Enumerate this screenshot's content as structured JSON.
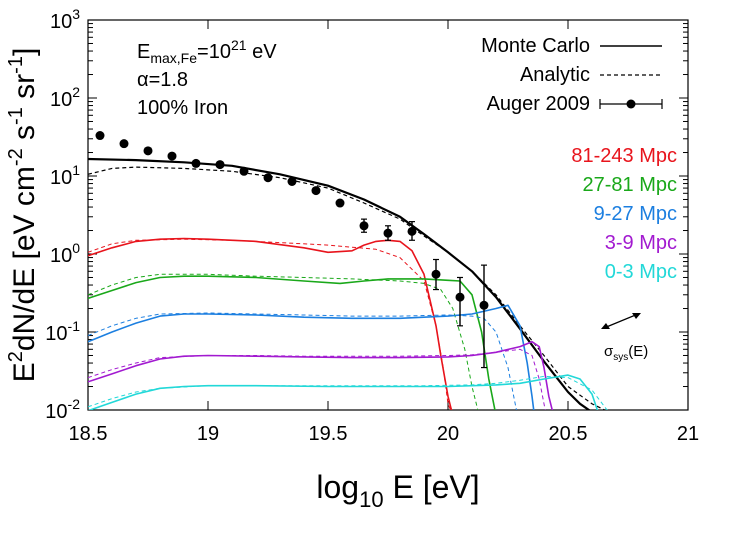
{
  "chart_data": {
    "type": "line",
    "xlabel": "log10 E [eV]",
    "ylabel": "E2dN/dE [eV cm-2 s-1 sr-1]",
    "xlim": [
      18.5,
      21
    ],
    "ylim": [
      0.01,
      1000
    ],
    "yscale": "log",
    "x_ticks": [
      "18.5",
      "19",
      "19.5",
      "20",
      "20.5",
      "21"
    ],
    "y_ticks": [
      {
        "base": "10",
        "exp": "-2",
        "value": 0.01
      },
      {
        "base": "10",
        "exp": "-1",
        "value": 0.1
      },
      {
        "base": "10",
        "exp": "0",
        "value": 1
      },
      {
        "base": "10",
        "exp": "1",
        "value": 10
      },
      {
        "base": "10",
        "exp": "2",
        "value": 100
      },
      {
        "base": "10",
        "exp": "3",
        "value": 1000
      }
    ],
    "annotations": {
      "emax": "Emax,Fe=10^21 eV",
      "alpha": "α=1.8",
      "composition": "100% Iron",
      "sigma": "σsys(E)"
    },
    "legend_placement": "top-right",
    "legend": [
      {
        "label": "Monte Carlo",
        "style": "solid"
      },
      {
        "label": "Analytic",
        "style": "dashed"
      },
      {
        "label": "Auger 2009",
        "style": "points-errorbars"
      }
    ],
    "distance_labels": [
      {
        "label": "81-243 Mpc",
        "color": "#e8141c"
      },
      {
        "label": "27-81 Mpc",
        "color": "#1aa81a"
      },
      {
        "label": "9-27 Mpc",
        "color": "#1c7fe0"
      },
      {
        "label": "3-9 Mpc",
        "color": "#a21ad0"
      },
      {
        "label": "0-3 Mpc",
        "color": "#22d8d8"
      }
    ],
    "series": [
      {
        "name": "Monte Carlo",
        "color": "#000000",
        "dash": false,
        "width": 2.2,
        "points": [
          [
            18.5,
            16.5
          ],
          [
            18.7,
            16
          ],
          [
            18.9,
            15
          ],
          [
            19.1,
            13.5
          ],
          [
            19.3,
            10.5
          ],
          [
            19.5,
            7.5
          ],
          [
            19.65,
            5
          ],
          [
            19.8,
            3
          ],
          [
            19.9,
            1.8
          ],
          [
            20.0,
            1.05
          ],
          [
            20.1,
            0.6
          ],
          [
            20.2,
            0.28
          ],
          [
            20.3,
            0.11
          ],
          [
            20.4,
            0.042
          ],
          [
            20.5,
            0.017
          ],
          [
            20.55,
            0.012
          ],
          [
            20.62,
            0.0085
          ]
        ]
      },
      {
        "name": "Analytic",
        "color": "#000000",
        "dash": true,
        "width": 1.2,
        "points": [
          [
            18.5,
            10.5
          ],
          [
            18.6,
            12.5
          ],
          [
            18.7,
            13
          ],
          [
            18.9,
            12.5
          ],
          [
            19.1,
            11.5
          ],
          [
            19.3,
            9.5
          ],
          [
            19.5,
            7
          ],
          [
            19.65,
            4.5
          ],
          [
            19.8,
            2.8
          ],
          [
            19.9,
            1.7
          ],
          [
            20.0,
            1.05
          ],
          [
            20.1,
            0.6
          ],
          [
            20.2,
            0.3
          ],
          [
            20.3,
            0.12
          ],
          [
            20.4,
            0.05
          ],
          [
            20.5,
            0.02
          ],
          [
            20.6,
            0.012
          ],
          [
            20.7,
            0.0085
          ]
        ]
      },
      {
        "name": "81-243 Mpc",
        "color": "#e8141c",
        "dash": false,
        "width": 1.6,
        "points": [
          [
            18.5,
            0.95
          ],
          [
            18.6,
            1.2
          ],
          [
            18.7,
            1.45
          ],
          [
            18.8,
            1.55
          ],
          [
            18.9,
            1.58
          ],
          [
            19.0,
            1.55
          ],
          [
            19.2,
            1.45
          ],
          [
            19.4,
            1.2
          ],
          [
            19.5,
            1.05
          ],
          [
            19.6,
            1.1
          ],
          [
            19.65,
            1.3
          ],
          [
            19.7,
            1.45
          ],
          [
            19.75,
            1.5
          ],
          [
            19.8,
            1.45
          ],
          [
            19.85,
            1.1
          ],
          [
            19.9,
            0.55
          ],
          [
            19.95,
            0.12
          ],
          [
            19.97,
            0.05
          ],
          [
            20.0,
            0.015
          ],
          [
            20.02,
            0.0085
          ]
        ]
      },
      {
        "name": "81-243 Mpc",
        "color": "#e8141c",
        "dash": true,
        "width": 1.0,
        "points": [
          [
            18.5,
            1.05
          ],
          [
            18.6,
            1.35
          ],
          [
            18.7,
            1.5
          ],
          [
            18.9,
            1.55
          ],
          [
            19.1,
            1.5
          ],
          [
            19.3,
            1.4
          ],
          [
            19.5,
            1.3
          ],
          [
            19.7,
            1.15
          ],
          [
            19.8,
            0.9
          ],
          [
            19.9,
            0.45
          ],
          [
            19.95,
            0.12
          ],
          [
            19.98,
            0.035
          ],
          [
            20.0,
            0.012
          ],
          [
            20.02,
            0.0085
          ]
        ]
      },
      {
        "name": "27-81 Mpc",
        "color": "#1aa81a",
        "dash": false,
        "width": 1.6,
        "points": [
          [
            18.5,
            0.27
          ],
          [
            18.6,
            0.34
          ],
          [
            18.7,
            0.43
          ],
          [
            18.8,
            0.5
          ],
          [
            18.9,
            0.52
          ],
          [
            19.0,
            0.52
          ],
          [
            19.2,
            0.5
          ],
          [
            19.4,
            0.45
          ],
          [
            19.55,
            0.42
          ],
          [
            19.65,
            0.45
          ],
          [
            19.75,
            0.48
          ],
          [
            19.9,
            0.48
          ],
          [
            20.0,
            0.46
          ],
          [
            20.05,
            0.45
          ],
          [
            20.1,
            0.3
          ],
          [
            20.14,
            0.1
          ],
          [
            20.17,
            0.025
          ],
          [
            20.2,
            0.0085
          ]
        ]
      },
      {
        "name": "27-81 Mpc",
        "color": "#1aa81a",
        "dash": true,
        "width": 1.0,
        "points": [
          [
            18.5,
            0.3
          ],
          [
            18.6,
            0.4
          ],
          [
            18.7,
            0.5
          ],
          [
            18.8,
            0.55
          ],
          [
            19.0,
            0.55
          ],
          [
            19.2,
            0.52
          ],
          [
            19.4,
            0.5
          ],
          [
            19.6,
            0.48
          ],
          [
            19.8,
            0.45
          ],
          [
            19.9,
            0.42
          ],
          [
            19.97,
            0.35
          ],
          [
            20.02,
            0.2
          ],
          [
            20.07,
            0.06
          ],
          [
            20.1,
            0.02
          ],
          [
            20.13,
            0.0085
          ]
        ]
      },
      {
        "name": "9-27 Mpc",
        "color": "#1c7fe0",
        "dash": false,
        "width": 1.6,
        "points": [
          [
            18.5,
            0.075
          ],
          [
            18.6,
            0.1
          ],
          [
            18.7,
            0.13
          ],
          [
            18.8,
            0.16
          ],
          [
            18.9,
            0.17
          ],
          [
            19.0,
            0.17
          ],
          [
            19.2,
            0.165
          ],
          [
            19.4,
            0.155
          ],
          [
            19.6,
            0.15
          ],
          [
            19.8,
            0.15
          ],
          [
            20.0,
            0.16
          ],
          [
            20.1,
            0.17
          ],
          [
            20.2,
            0.2
          ],
          [
            20.25,
            0.22
          ],
          [
            20.3,
            0.12
          ],
          [
            20.33,
            0.04
          ],
          [
            20.35,
            0.015
          ],
          [
            20.36,
            0.0085
          ]
        ]
      },
      {
        "name": "9-27 Mpc",
        "color": "#1c7fe0",
        "dash": true,
        "width": 1.0,
        "points": [
          [
            18.5,
            0.09
          ],
          [
            18.6,
            0.12
          ],
          [
            18.7,
            0.15
          ],
          [
            18.8,
            0.17
          ],
          [
            19.0,
            0.175
          ],
          [
            19.2,
            0.17
          ],
          [
            19.4,
            0.165
          ],
          [
            19.6,
            0.16
          ],
          [
            19.8,
            0.16
          ],
          [
            20.0,
            0.165
          ],
          [
            20.1,
            0.16
          ],
          [
            20.15,
            0.15
          ],
          [
            20.2,
            0.1
          ],
          [
            20.25,
            0.035
          ],
          [
            20.28,
            0.012
          ],
          [
            20.29,
            0.0085
          ]
        ]
      },
      {
        "name": "3-9 Mpc",
        "color": "#a21ad0",
        "dash": false,
        "width": 1.6,
        "points": [
          [
            18.5,
            0.023
          ],
          [
            18.6,
            0.029
          ],
          [
            18.7,
            0.037
          ],
          [
            18.8,
            0.045
          ],
          [
            18.9,
            0.049
          ],
          [
            19.0,
            0.05
          ],
          [
            19.2,
            0.049
          ],
          [
            19.4,
            0.048
          ],
          [
            19.6,
            0.047
          ],
          [
            19.8,
            0.047
          ],
          [
            20.0,
            0.048
          ],
          [
            20.1,
            0.05
          ],
          [
            20.2,
            0.055
          ],
          [
            20.3,
            0.065
          ],
          [
            20.35,
            0.075
          ],
          [
            20.38,
            0.065
          ],
          [
            20.4,
            0.035
          ],
          [
            20.42,
            0.015
          ],
          [
            20.44,
            0.0085
          ]
        ]
      },
      {
        "name": "3-9 Mpc",
        "color": "#a21ad0",
        "dash": true,
        "width": 1.0,
        "points": [
          [
            18.5,
            0.026
          ],
          [
            18.6,
            0.033
          ],
          [
            18.7,
            0.04
          ],
          [
            18.8,
            0.047
          ],
          [
            19.0,
            0.05
          ],
          [
            19.2,
            0.05
          ],
          [
            19.4,
            0.049
          ],
          [
            19.6,
            0.049
          ],
          [
            19.8,
            0.049
          ],
          [
            20.0,
            0.05
          ],
          [
            20.1,
            0.051
          ],
          [
            20.2,
            0.055
          ],
          [
            20.3,
            0.06
          ],
          [
            20.35,
            0.05
          ],
          [
            20.38,
            0.025
          ],
          [
            20.4,
            0.012
          ],
          [
            20.41,
            0.0085
          ]
        ]
      },
      {
        "name": "0-3 Mpc",
        "color": "#22d8d8",
        "dash": false,
        "width": 1.6,
        "points": [
          [
            18.5,
            0.0098
          ],
          [
            18.6,
            0.0125
          ],
          [
            18.7,
            0.016
          ],
          [
            18.8,
            0.019
          ],
          [
            18.9,
            0.02
          ],
          [
            19.0,
            0.0205
          ],
          [
            19.2,
            0.0205
          ],
          [
            19.5,
            0.02
          ],
          [
            19.8,
            0.02
          ],
          [
            20.0,
            0.02
          ],
          [
            20.2,
            0.021
          ],
          [
            20.3,
            0.022
          ],
          [
            20.4,
            0.025
          ],
          [
            20.5,
            0.028
          ],
          [
            20.55,
            0.025
          ],
          [
            20.6,
            0.016
          ],
          [
            20.63,
            0.0085
          ]
        ]
      },
      {
        "name": "0-3 Mpc",
        "color": "#22d8d8",
        "dash": true,
        "width": 1.0,
        "points": [
          [
            18.5,
            0.011
          ],
          [
            18.6,
            0.014
          ],
          [
            18.7,
            0.017
          ],
          [
            18.8,
            0.019
          ],
          [
            19.0,
            0.0205
          ],
          [
            19.3,
            0.0205
          ],
          [
            19.6,
            0.0205
          ],
          [
            19.9,
            0.0205
          ],
          [
            20.1,
            0.021
          ],
          [
            20.2,
            0.022
          ],
          [
            20.3,
            0.024
          ],
          [
            20.4,
            0.027
          ],
          [
            20.5,
            0.026
          ],
          [
            20.6,
            0.018
          ],
          [
            20.68,
            0.0085
          ]
        ]
      }
    ],
    "auger_2009": [
      {
        "x": 18.55,
        "y": 33
      },
      {
        "x": 18.65,
        "y": 26
      },
      {
        "x": 18.75,
        "y": 21
      },
      {
        "x": 18.85,
        "y": 18
      },
      {
        "x": 18.95,
        "y": 14.5
      },
      {
        "x": 19.05,
        "y": 14
      },
      {
        "x": 19.15,
        "y": 11.5
      },
      {
        "x": 19.25,
        "y": 9.5
      },
      {
        "x": 19.35,
        "y": 8.5
      },
      {
        "x": 19.45,
        "y": 6.5
      },
      {
        "x": 19.55,
        "y": 4.5
      },
      {
        "x": 19.65,
        "y": 2.3,
        "lo": 1.9,
        "hi": 2.8
      },
      {
        "x": 19.75,
        "y": 1.85,
        "lo": 1.5,
        "hi": 2.3
      },
      {
        "x": 19.85,
        "y": 1.95,
        "lo": 1.5,
        "hi": 2.6
      },
      {
        "x": 19.95,
        "y": 0.55,
        "lo": 0.35,
        "hi": 0.85
      },
      {
        "x": 20.05,
        "y": 0.28,
        "lo": 0.12,
        "hi": 0.5
      },
      {
        "x": 20.15,
        "y": 0.22,
        "lo": 0.035,
        "hi": 0.72
      }
    ]
  }
}
